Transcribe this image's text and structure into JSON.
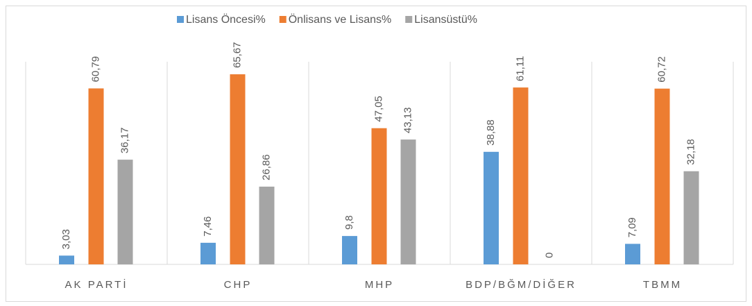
{
  "chart_data": {
    "type": "bar",
    "categories": [
      "AK PARTİ",
      "CHP",
      "MHP",
      "BDP/BĞM/DİĞER",
      "TBMM"
    ],
    "series": [
      {
        "name": "Lisans Öncesi%",
        "color": "#5b9bd5",
        "values": [
          3.03,
          7.46,
          9.8,
          38.88,
          7.09
        ],
        "value_labels": [
          "3,03",
          "7,46",
          "9,8",
          "38,88",
          "7,09"
        ]
      },
      {
        "name": "Önlisans ve Lisans%",
        "color": "#ed7d31",
        "values": [
          60.79,
          65.67,
          47.05,
          61.11,
          60.72
        ],
        "value_labels": [
          "60,79",
          "65,67",
          "47,05",
          "61,11",
          "60,72"
        ]
      },
      {
        "name": "Lisansüstü%",
        "color": "#a5a5a5",
        "values": [
          36.17,
          26.86,
          43.13,
          0,
          32.18
        ],
        "value_labels": [
          "36,17",
          "26,86",
          "43,13",
          "0",
          "32,18"
        ]
      }
    ],
    "ylim": [
      0,
      70
    ],
    "legend": "top"
  }
}
